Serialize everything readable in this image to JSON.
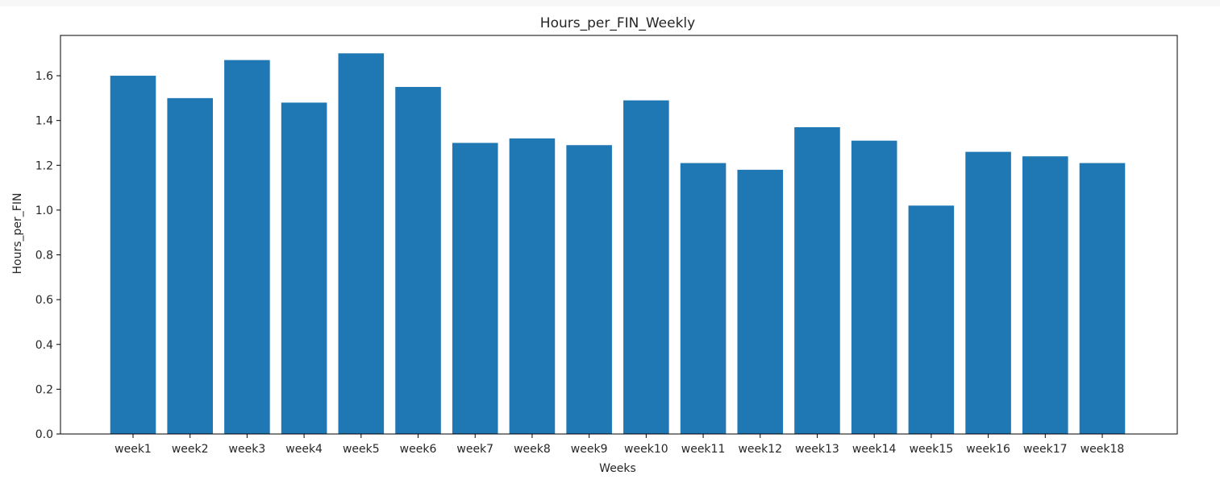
{
  "chart_data": {
    "type": "bar",
    "title": "Hours_per_FIN_Weekly",
    "xlabel": "Weeks",
    "ylabel": "Hours_per_FIN",
    "categories": [
      "week1",
      "week2",
      "week3",
      "week4",
      "week5",
      "week6",
      "week7",
      "week8",
      "week9",
      "week10",
      "week11",
      "week12",
      "week13",
      "week14",
      "week15",
      "week16",
      "week17",
      "week18"
    ],
    "values": [
      1.6,
      1.5,
      1.67,
      1.48,
      1.7,
      1.55,
      1.3,
      1.32,
      1.29,
      1.49,
      1.21,
      1.18,
      1.37,
      1.31,
      1.02,
      1.26,
      1.24,
      1.21
    ],
    "ylim": [
      0,
      1.78
    ],
    "yticks": [
      0.0,
      0.2,
      0.4,
      0.6,
      0.8,
      1.0,
      1.2,
      1.4,
      1.6
    ],
    "ytick_labels": [
      "0.0",
      "0.2",
      "0.4",
      "0.6",
      "0.8",
      "1.0",
      "1.2",
      "1.4",
      "1.6"
    ],
    "grid": false,
    "bar_color": "#1f77b4"
  }
}
